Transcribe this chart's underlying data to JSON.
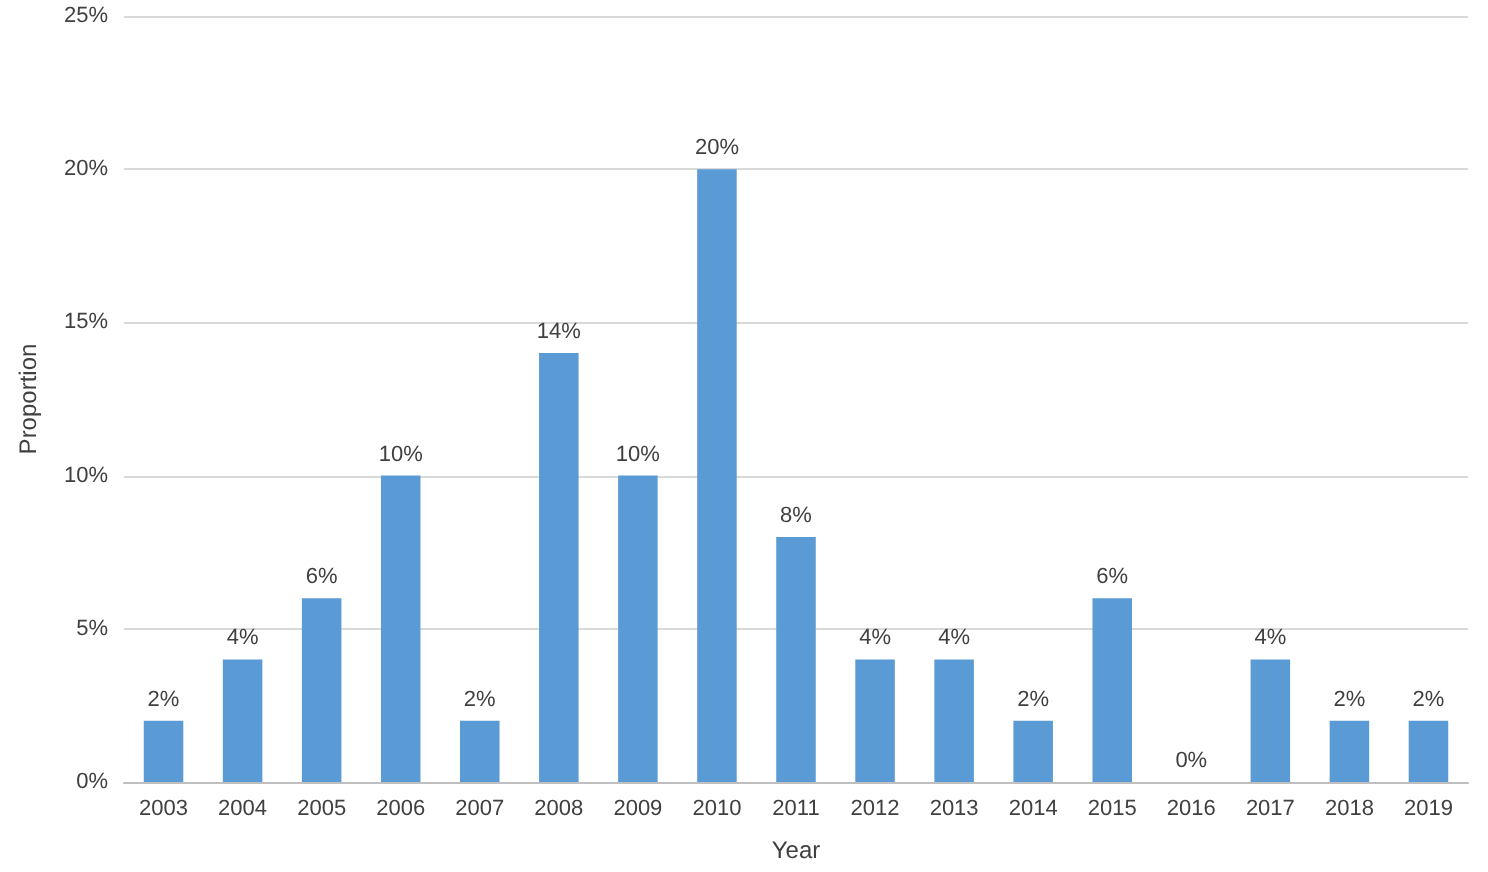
{
  "chart_data": {
    "type": "bar",
    "xlabel": "Year",
    "ylabel": "Proportion",
    "categories": [
      "2003",
      "2004",
      "2005",
      "2006",
      "2007",
      "2008",
      "2009",
      "2010",
      "2011",
      "2012",
      "2013",
      "2014",
      "2015",
      "2016",
      "2017",
      "2018",
      "2019"
    ],
    "values": [
      2,
      4,
      6,
      10,
      2,
      14,
      10,
      20,
      8,
      4,
      4,
      2,
      6,
      0,
      4,
      2,
      2
    ],
    "value_labels": [
      "2%",
      "4%",
      "6%",
      "10%",
      "2%",
      "14%",
      "10%",
      "20%",
      "8%",
      "4%",
      "4%",
      "2%",
      "6%",
      "0%",
      "4%",
      "2%",
      "2%"
    ],
    "color": "#5b9bd5",
    "ylim": [
      0,
      25
    ],
    "yticks": [
      {
        "value": 0,
        "label": "0%"
      },
      {
        "value": 5,
        "label": "5%"
      },
      {
        "value": 10,
        "label": "10%"
      },
      {
        "value": 15,
        "label": "15%"
      },
      {
        "value": 20,
        "label": "20%"
      },
      {
        "value": 25,
        "label": "25%"
      }
    ],
    "grid": "y"
  }
}
